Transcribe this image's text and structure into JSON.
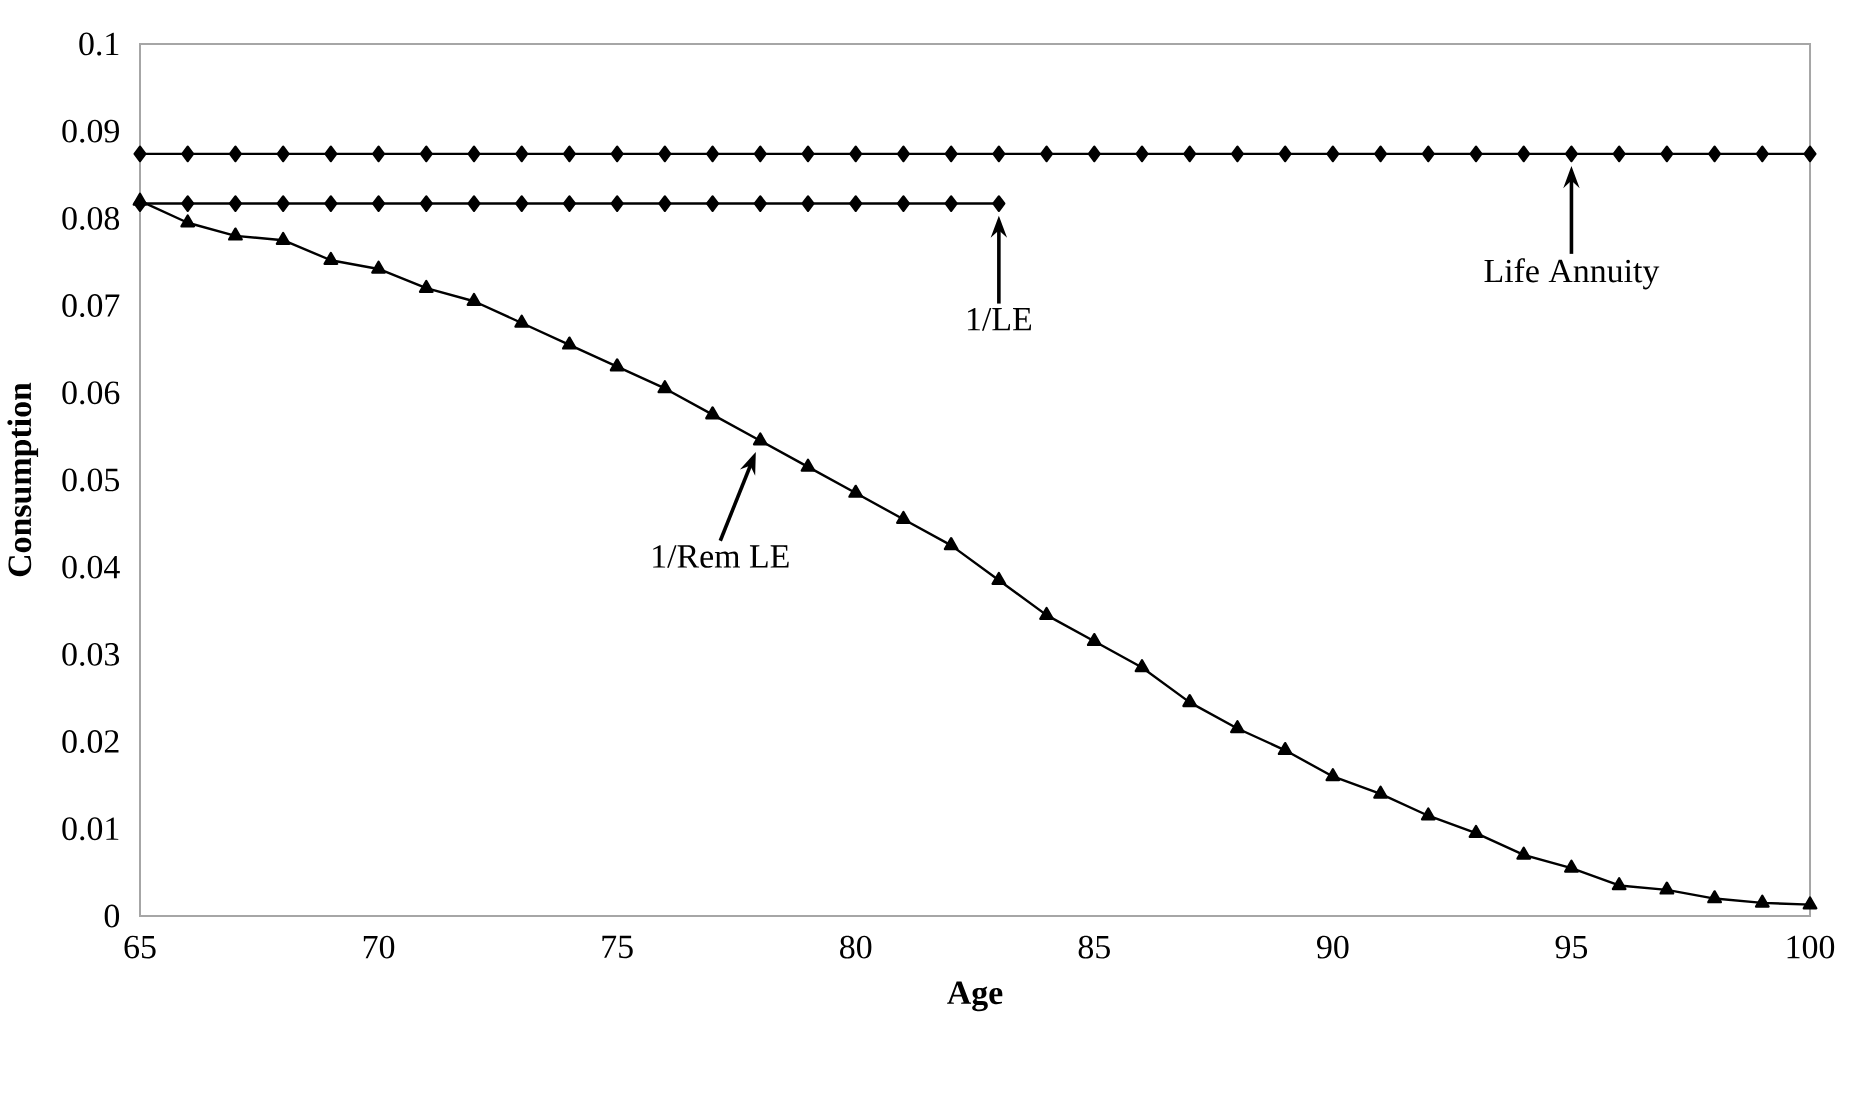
{
  "chart_data": {
    "type": "line",
    "xlabel": "Age",
    "ylabel": "Consumption",
    "xlim": [
      65,
      100
    ],
    "xticks": [
      65,
      70,
      75,
      80,
      85,
      90,
      95,
      100
    ],
    "ylim": [
      0,
      0.1
    ],
    "yticks": [
      0,
      0.01,
      0.02,
      0.03,
      0.04,
      0.05,
      0.06,
      0.07,
      0.08,
      0.09,
      0.1
    ],
    "grid": false,
    "legend": "top right",
    "series": [
      {
        "name": "Life Annuity",
        "color": "#000000",
        "marker": "diamond",
        "x": [
          65,
          66,
          67,
          68,
          69,
          70,
          71,
          72,
          73,
          74,
          75,
          76,
          77,
          78,
          79,
          80,
          81,
          82,
          83,
          84,
          85,
          86,
          87,
          88,
          89,
          90,
          91,
          92,
          93,
          94,
          95,
          96,
          97,
          98,
          99,
          100
        ],
        "values": [
          0.0874,
          0.0874,
          0.0874,
          0.0874,
          0.0874,
          0.0874,
          0.0874,
          0.0874,
          0.0874,
          0.0874,
          0.0874,
          0.0874,
          0.0874,
          0.0874,
          0.0874,
          0.0874,
          0.0874,
          0.0874,
          0.0874,
          0.0874,
          0.0874,
          0.0874,
          0.0874,
          0.0874,
          0.0874,
          0.0874,
          0.0874,
          0.0874,
          0.0874,
          0.0874,
          0.0874,
          0.0874,
          0.0874,
          0.0874,
          0.0874,
          0.0874
        ]
      },
      {
        "name": "1/LE",
        "color": "#000000",
        "marker": "diamond",
        "x": [
          65,
          66,
          67,
          68,
          69,
          70,
          71,
          72,
          73,
          74,
          75,
          76,
          77,
          78,
          79,
          80,
          81,
          82,
          83
        ],
        "values": [
          0.0817,
          0.0817,
          0.0817,
          0.0817,
          0.0817,
          0.0817,
          0.0817,
          0.0817,
          0.0817,
          0.0817,
          0.0817,
          0.0817,
          0.0817,
          0.0817,
          0.0817,
          0.0817,
          0.0817,
          0.0817,
          0.0817
        ]
      },
      {
        "name": "1/Rem LE",
        "color": "#000000",
        "marker": "triangle",
        "x": [
          65,
          66,
          67,
          68,
          69,
          70,
          71,
          72,
          73,
          74,
          75,
          76,
          77,
          78,
          79,
          80,
          81,
          82,
          83,
          84,
          85,
          86,
          87,
          88,
          89,
          90,
          91,
          92,
          93,
          94,
          95,
          96,
          97,
          98,
          99,
          100
        ],
        "values": [
          0.082,
          0.0795,
          0.078,
          0.0775,
          0.0752,
          0.0742,
          0.072,
          0.0705,
          0.068,
          0.0655,
          0.063,
          0.0605,
          0.0575,
          0.0545,
          0.0515,
          0.0485,
          0.0455,
          0.0425,
          0.0385,
          0.0345,
          0.0315,
          0.0285,
          0.0245,
          0.0215,
          0.019,
          0.016,
          0.014,
          0.0115,
          0.0095,
          0.007,
          0.0055,
          0.0035,
          0.003,
          0.002,
          0.0015,
          0.0013
        ]
      }
    ]
  }
}
